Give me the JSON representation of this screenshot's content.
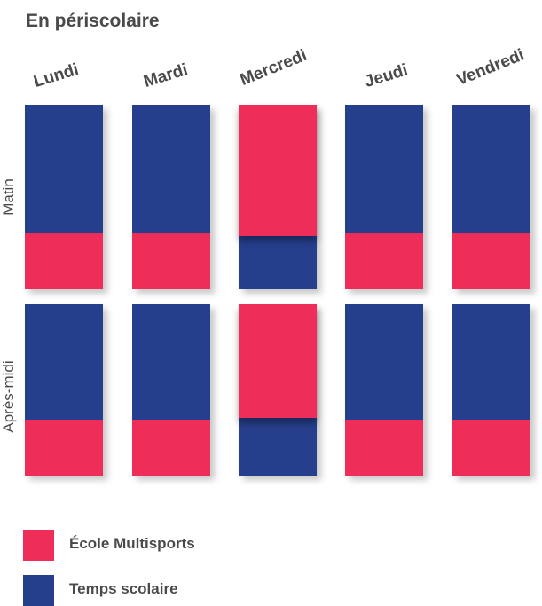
{
  "title": "En périscolaire",
  "days": [
    "Lundi",
    "Mardi",
    "Mercredi",
    "Jeudi",
    "Vendredi"
  ],
  "periods": [
    "Matin",
    "Après-midi"
  ],
  "colors": {
    "ecole_multisports": "#ee2d59",
    "temps_scolaire": "#263f8d"
  },
  "legend": [
    {
      "label": "École Multisports",
      "color": "#ee2d59"
    },
    {
      "label": "Temps scolaire",
      "color": "#263f8d"
    }
  ]
}
